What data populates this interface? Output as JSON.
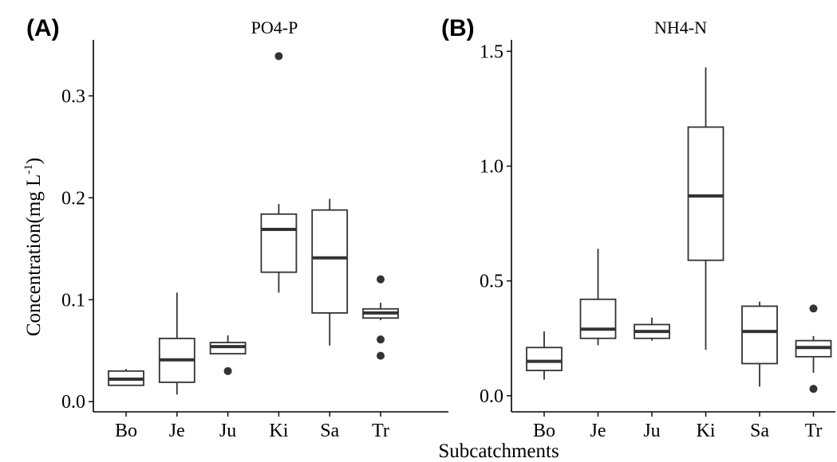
{
  "figure": {
    "x_axis_title": "Subcatchments",
    "y_axis_title_main": "Concentration(mg L",
    "y_axis_title_sup": "-1",
    "y_axis_title_close": ")"
  },
  "chart_data": [
    {
      "type": "box",
      "panel_tag": "(A)",
      "title": "PO4-P",
      "categories": [
        "Bo",
        "Je",
        "Ju",
        "Ki",
        "Sa",
        "Tr"
      ],
      "ylim": [
        -0.01,
        0.355
      ],
      "yticks": [
        0.0,
        0.1,
        0.2,
        0.3
      ],
      "ytick_labels": [
        "0.0",
        "0.1",
        "0.2",
        "0.3"
      ],
      "grid": false,
      "boxes": [
        {
          "category": "Bo",
          "min": 0.016,
          "q1": 0.016,
          "median": 0.022,
          "q3": 0.03,
          "max": 0.032,
          "outliers": []
        },
        {
          "category": "Je",
          "min": 0.007,
          "q1": 0.019,
          "median": 0.041,
          "q3": 0.062,
          "max": 0.107,
          "outliers": []
        },
        {
          "category": "Ju",
          "min": 0.047,
          "q1": 0.047,
          "median": 0.054,
          "q3": 0.058,
          "max": 0.065,
          "outliers": [
            0.03
          ]
        },
        {
          "category": "Ki",
          "min": 0.107,
          "q1": 0.127,
          "median": 0.169,
          "q3": 0.184,
          "max": 0.194,
          "outliers": [
            0.339
          ]
        },
        {
          "category": "Sa",
          "min": 0.055,
          "q1": 0.087,
          "median": 0.141,
          "q3": 0.188,
          "max": 0.199,
          "outliers": []
        },
        {
          "category": "Tr",
          "min": 0.08,
          "q1": 0.082,
          "median": 0.087,
          "q3": 0.091,
          "max": 0.097,
          "outliers": [
            0.12,
            0.061,
            0.045
          ]
        }
      ]
    },
    {
      "type": "box",
      "panel_tag": "(B)",
      "title": "NH4-N",
      "categories": [
        "Bo",
        "Je",
        "Ju",
        "Ki",
        "Sa",
        "Tr"
      ],
      "ylim": [
        -0.07,
        1.55
      ],
      "yticks": [
        0.0,
        0.5,
        1.0,
        1.5
      ],
      "ytick_labels": [
        "0.0",
        "0.5",
        "1.0",
        "1.5"
      ],
      "grid": false,
      "boxes": [
        {
          "category": "Bo",
          "min": 0.07,
          "q1": 0.11,
          "median": 0.15,
          "q3": 0.21,
          "max": 0.28,
          "outliers": []
        },
        {
          "category": "Je",
          "min": 0.22,
          "q1": 0.25,
          "median": 0.29,
          "q3": 0.42,
          "max": 0.64,
          "outliers": []
        },
        {
          "category": "Ju",
          "min": 0.24,
          "q1": 0.25,
          "median": 0.28,
          "q3": 0.31,
          "max": 0.34,
          "outliers": []
        },
        {
          "category": "Ki",
          "min": 0.2,
          "q1": 0.59,
          "median": 0.87,
          "q3": 1.17,
          "max": 1.43,
          "outliers": []
        },
        {
          "category": "Sa",
          "min": 0.04,
          "q1": 0.14,
          "median": 0.28,
          "q3": 0.39,
          "max": 0.41,
          "outliers": []
        },
        {
          "category": "Tr",
          "min": 0.1,
          "q1": 0.17,
          "median": 0.21,
          "q3": 0.24,
          "max": 0.26,
          "outliers": [
            0.38,
            0.03
          ]
        }
      ]
    }
  ]
}
